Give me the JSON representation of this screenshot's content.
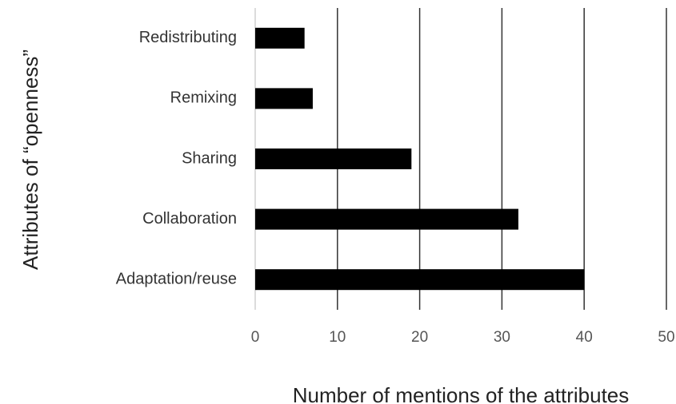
{
  "chart_data": {
    "type": "bar",
    "orientation": "horizontal",
    "categories": [
      "Redistributing",
      "Remixing",
      "Sharing",
      "Collaboration",
      "Adaptation/reuse"
    ],
    "values": [
      6,
      7,
      19,
      32,
      40
    ],
    "color": "#000000",
    "x_label": "Number of mentions of the attributes",
    "y_label": "Attributes of “openness”",
    "xlim": [
      0,
      50
    ],
    "xticks": [
      0,
      10,
      20,
      30,
      40,
      50
    ],
    "grid": true
  }
}
